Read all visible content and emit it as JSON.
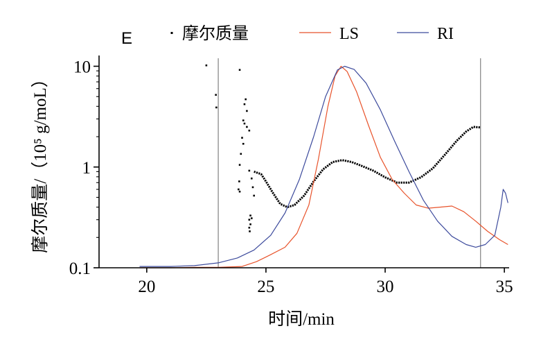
{
  "chart_data": {
    "type": "line",
    "panel_label": "E",
    "xlabel": "时间/min",
    "ylabel": "摩尔质量/（10⁵ g/moL）",
    "y_scale": "log",
    "xlim": [
      18,
      35.2
    ],
    "ylim": [
      0.1,
      12
    ],
    "x_ticks": [
      20,
      25,
      30,
      35
    ],
    "y_ticks": [
      0.1,
      1,
      10
    ],
    "y_tick_labels": [
      "0.1",
      "1",
      "10"
    ],
    "grid": false,
    "legend_position": "top",
    "reference_lines_x": [
      23.0,
      34.0
    ],
    "series": [
      {
        "name": "摩尔质量",
        "style": "markers",
        "color": "#000000",
        "points": [
          [
            22.5,
            10.2
          ],
          [
            22.9,
            5.2
          ],
          [
            22.92,
            3.9
          ],
          [
            23.9,
            9.2
          ],
          [
            24.15,
            4.7
          ],
          [
            24.1,
            4.2
          ],
          [
            24.2,
            3.6
          ],
          [
            24.05,
            2.9
          ],
          [
            24.1,
            2.7
          ],
          [
            24.2,
            2.5
          ],
          [
            24.3,
            2.3
          ],
          [
            24.0,
            1.95
          ],
          [
            24.05,
            1.7
          ],
          [
            23.95,
            1.35
          ],
          [
            23.9,
            1.05
          ],
          [
            23.88,
            0.72
          ],
          [
            23.85,
            0.6
          ],
          [
            23.9,
            0.57
          ],
          [
            24.3,
            0.92
          ],
          [
            24.4,
            0.77
          ],
          [
            24.45,
            0.63
          ],
          [
            24.5,
            0.52
          ],
          [
            24.35,
            0.33
          ],
          [
            24.4,
            0.31
          ],
          [
            24.3,
            0.3
          ],
          [
            24.35,
            0.27
          ],
          [
            24.3,
            0.25
          ],
          [
            24.32,
            0.23
          ]
        ],
        "curve": [
          [
            24.5,
            0.9
          ],
          [
            24.8,
            0.85
          ],
          [
            25.0,
            0.72
          ],
          [
            25.3,
            0.55
          ],
          [
            25.6,
            0.43
          ],
          [
            25.9,
            0.4
          ],
          [
            26.2,
            0.42
          ],
          [
            26.6,
            0.52
          ],
          [
            27.0,
            0.72
          ],
          [
            27.4,
            0.95
          ],
          [
            27.8,
            1.12
          ],
          [
            28.2,
            1.17
          ],
          [
            28.6,
            1.12
          ],
          [
            29.0,
            1.03
          ],
          [
            29.5,
            0.92
          ],
          [
            30.0,
            0.79
          ],
          [
            30.5,
            0.7
          ],
          [
            31.0,
            0.7
          ],
          [
            31.5,
            0.79
          ],
          [
            32.0,
            0.97
          ],
          [
            32.5,
            1.32
          ],
          [
            33.0,
            1.82
          ],
          [
            33.4,
            2.25
          ],
          [
            33.7,
            2.5
          ],
          [
            34.0,
            2.47
          ]
        ]
      },
      {
        "name": "LS",
        "style": "line",
        "color": "#e8522a",
        "points": [
          [
            19.7,
            0.1
          ],
          [
            21.0,
            0.1
          ],
          [
            22.0,
            0.101
          ],
          [
            23.0,
            0.101
          ],
          [
            24.0,
            0.103
          ],
          [
            24.6,
            0.115
          ],
          [
            25.2,
            0.135
          ],
          [
            25.8,
            0.16
          ],
          [
            26.3,
            0.22
          ],
          [
            26.8,
            0.42
          ],
          [
            27.2,
            1.2
          ],
          [
            27.6,
            4.0
          ],
          [
            27.9,
            8.0
          ],
          [
            28.15,
            10.0
          ],
          [
            28.4,
            8.9
          ],
          [
            28.8,
            5.6
          ],
          [
            29.3,
            2.6
          ],
          [
            29.8,
            1.25
          ],
          [
            30.3,
            0.75
          ],
          [
            30.8,
            0.55
          ],
          [
            31.3,
            0.42
          ],
          [
            31.8,
            0.39
          ],
          [
            32.3,
            0.4
          ],
          [
            32.8,
            0.41
          ],
          [
            33.3,
            0.36
          ],
          [
            33.8,
            0.29
          ],
          [
            34.3,
            0.23
          ],
          [
            34.8,
            0.19
          ],
          [
            35.15,
            0.17
          ]
        ]
      },
      {
        "name": "RI",
        "style": "line",
        "color": "#3c4a9c",
        "points": [
          [
            19.7,
            0.103
          ],
          [
            21.0,
            0.103
          ],
          [
            22.0,
            0.105
          ],
          [
            23.0,
            0.112
          ],
          [
            23.8,
            0.125
          ],
          [
            24.5,
            0.15
          ],
          [
            25.2,
            0.21
          ],
          [
            25.8,
            0.35
          ],
          [
            26.4,
            0.75
          ],
          [
            27.0,
            2.0
          ],
          [
            27.5,
            5.0
          ],
          [
            28.0,
            9.2
          ],
          [
            28.3,
            10.0
          ],
          [
            28.7,
            9.3
          ],
          [
            29.2,
            6.8
          ],
          [
            29.8,
            3.7
          ],
          [
            30.4,
            1.8
          ],
          [
            31.0,
            0.9
          ],
          [
            31.6,
            0.47
          ],
          [
            32.2,
            0.29
          ],
          [
            32.8,
            0.205
          ],
          [
            33.4,
            0.17
          ],
          [
            33.8,
            0.16
          ],
          [
            34.2,
            0.17
          ],
          [
            34.6,
            0.21
          ],
          [
            34.85,
            0.4
          ],
          [
            34.95,
            0.6
          ],
          [
            35.05,
            0.55
          ],
          [
            35.15,
            0.44
          ]
        ]
      }
    ]
  }
}
